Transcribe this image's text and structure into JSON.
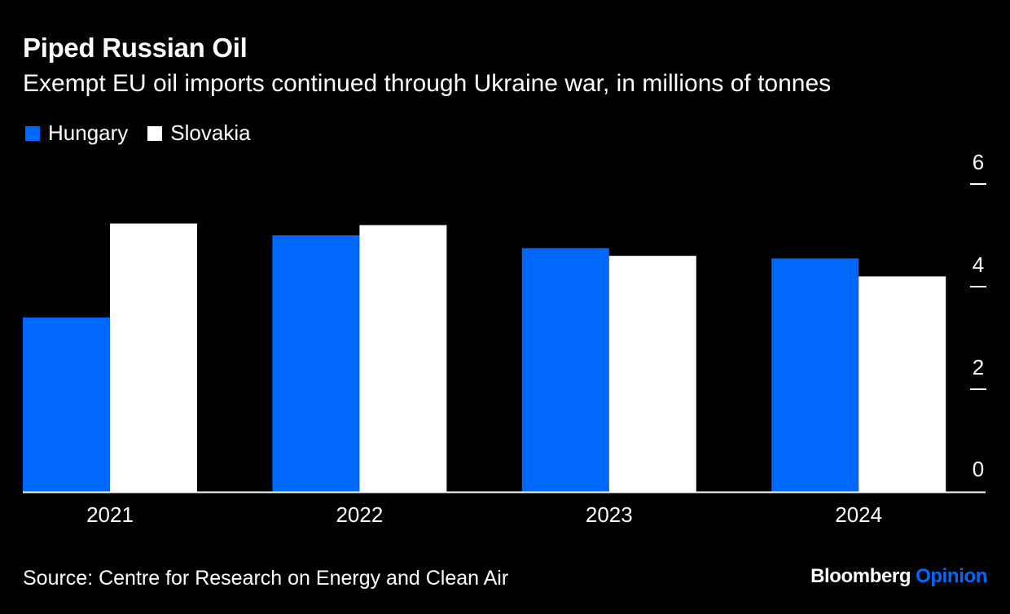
{
  "colors": {
    "background": "#000000",
    "hungary": "#0068ff",
    "slovakia": "#ffffff",
    "text": "#ffffff"
  },
  "header": {
    "title": "Piped Russian Oil",
    "subtitle": "Exempt EU oil imports continued through Ukraine war, in millions of tonnes"
  },
  "footer": {
    "source": "Source: Centre for Research on Energy and Clean Air",
    "brand_main": "Bloomberg",
    "brand_accent": "Opinion"
  },
  "chart_data": {
    "type": "bar",
    "categories": [
      "2021",
      "2022",
      "2023",
      "2024"
    ],
    "series": [
      {
        "name": "Hungary",
        "values": [
          3.4,
          5.0,
          4.75,
          4.55
        ]
      },
      {
        "name": "Slovakia",
        "values": [
          5.23,
          5.2,
          4.6,
          4.2
        ]
      }
    ],
    "ylim": [
      0,
      6
    ],
    "yticks": [
      0,
      2,
      4,
      6
    ],
    "y_axis_side": "right",
    "grid": false,
    "legend": "top-left"
  }
}
